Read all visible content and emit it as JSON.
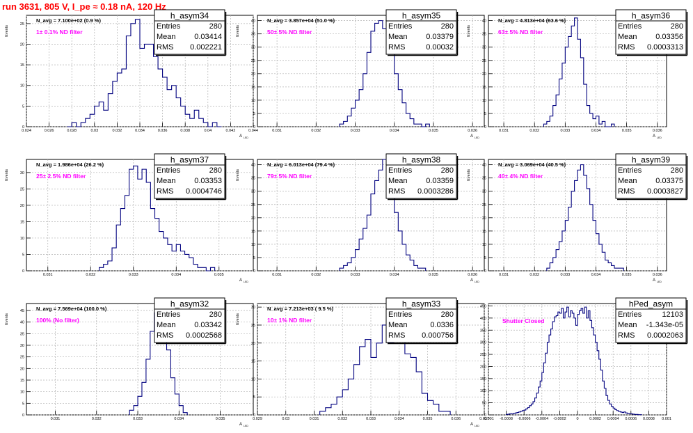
{
  "run_title": "run 3631,   805 V, I_pe ≈ 0.18 nA, 120 Hz",
  "colors": {
    "histogram_line": "#00007f",
    "filter_label": "#ff00ff",
    "run_title": "#ff0000",
    "frame": "#000000",
    "grid": "#b0b0b0"
  },
  "chart_data": [
    {
      "type": "histogram",
      "name": "h_asym34",
      "navg": "N_avg = 7.100e+02 (0.9 %)",
      "filter": "1± 0.1% ND filter",
      "stats": [
        [
          "Entries",
          "280"
        ],
        [
          "Mean",
          "0.03414"
        ],
        [
          "RMS",
          "0.002221"
        ]
      ],
      "ylabel": "Events",
      "xlabel": "A",
      "xlim": [
        0.024,
        0.044
      ],
      "ylim": [
        0,
        27
      ],
      "xticks": [
        "0.024",
        "0.026",
        "0.028",
        "0.03",
        "0.032",
        "0.034",
        "0.036",
        "0.038",
        "0.04",
        "0.042",
        "0.044"
      ],
      "yticks": [
        "0",
        "5",
        "10",
        "15",
        "20",
        "25"
      ],
      "bin_width": 0.0004,
      "x": [
        0.0276,
        0.028,
        0.0284,
        0.0288,
        0.0292,
        0.0296,
        0.03,
        0.0304,
        0.0308,
        0.0312,
        0.0316,
        0.032,
        0.0324,
        0.0328,
        0.0332,
        0.0336,
        0.034,
        0.0344,
        0.0348,
        0.0352,
        0.0356,
        0.036,
        0.0364,
        0.0368,
        0.0372,
        0.0376,
        0.038,
        0.0384,
        0.0388,
        0.0392,
        0.0396,
        0.04,
        0.0404,
        0.0408
      ],
      "values": [
        0,
        1,
        0,
        1,
        2,
        3,
        5,
        6,
        4,
        8,
        11,
        13,
        14,
        22,
        25,
        26,
        19,
        20,
        20,
        17,
        14,
        12,
        9,
        10,
        7,
        5,
        3,
        2,
        4,
        2,
        1,
        0,
        1,
        0
      ]
    },
    {
      "type": "histogram",
      "name": "h_asym35",
      "navg": "N_avg = 3.857e+04 (51.0 %)",
      "filter": "50± 5% ND filter",
      "stats": [
        [
          "Entries",
          "280"
        ],
        [
          "Mean",
          "0.03379"
        ],
        [
          "RMS",
          "0.00032"
        ]
      ],
      "ylabel": "Events",
      "xlabel": "A",
      "xlim": [
        0.0305,
        0.0363
      ],
      "ylim": [
        0,
        42
      ],
      "xticks": [
        "0.031",
        "0.032",
        "0.033",
        "0.034",
        "0.035",
        "0.036"
      ],
      "xticks_at": [
        0.031,
        0.032,
        0.033,
        0.034,
        0.035,
        0.036
      ],
      "yticks": [
        "0",
        "5",
        "10",
        "15",
        "20",
        "25",
        "30",
        "35",
        "40"
      ],
      "bin_width": 0.0001,
      "x": [
        0.0326,
        0.0327,
        0.0328,
        0.0329,
        0.033,
        0.0331,
        0.0332,
        0.0333,
        0.0334,
        0.0335,
        0.0336,
        0.0337,
        0.0338,
        0.0339,
        0.034,
        0.0341,
        0.0342,
        0.0343,
        0.0344,
        0.0345,
        0.0346,
        0.0347,
        0.0348
      ],
      "values": [
        1,
        2,
        4,
        7,
        10,
        14,
        20,
        28,
        36,
        39,
        40,
        37,
        33,
        28,
        20,
        14,
        9,
        5,
        3,
        1,
        1,
        0,
        1
      ]
    },
    {
      "type": "histogram",
      "name": "h_asym36",
      "navg": "N_avg = 4.813e+04 (63.6 %)",
      "filter": "63± 5% ND filter",
      "stats": [
        [
          "Entries",
          "280"
        ],
        [
          "Mean",
          "0.03356"
        ],
        [
          "RMS",
          "0.0003313"
        ]
      ],
      "ylabel": "Events",
      "xlabel": "A",
      "xlim": [
        0.0305,
        0.0363
      ],
      "ylim": [
        0,
        42
      ],
      "xticks": [
        "0.031",
        "0.032",
        "0.033",
        "0.034",
        "0.035",
        "0.036"
      ],
      "xticks_at": [
        0.031,
        0.032,
        0.033,
        0.034,
        0.035,
        0.036
      ],
      "yticks": [
        "0",
        "5",
        "10",
        "15",
        "20",
        "25",
        "30",
        "35",
        "40"
      ],
      "bin_width": 0.0001,
      "x": [
        0.0323,
        0.0324,
        0.0325,
        0.0326,
        0.0327,
        0.0328,
        0.0329,
        0.033,
        0.0331,
        0.0332,
        0.0333,
        0.0334,
        0.0335,
        0.0336,
        0.0337,
        0.0338,
        0.0339,
        0.034,
        0.0341,
        0.0342,
        0.0343,
        0.0344,
        0.0345
      ],
      "values": [
        1,
        2,
        4,
        8,
        12,
        18,
        24,
        30,
        34,
        38,
        41,
        33,
        26,
        16,
        8,
        5,
        3,
        4,
        1,
        2,
        0,
        0,
        1
      ]
    },
    {
      "type": "histogram",
      "name": "h_asym37",
      "navg": "N_avg = 1.986e+04 (26.2 %)",
      "filter": "25± 2.5% ND filter",
      "stats": [
        [
          "Entries",
          "280"
        ],
        [
          "Mean",
          "0.03353"
        ],
        [
          "RMS",
          "0.0004746"
        ]
      ],
      "ylabel": "Events",
      "xlabel": "A",
      "xlim": [
        0.0305,
        0.0358
      ],
      "ylim": [
        0,
        34
      ],
      "xticks": [
        "0.031",
        "0.032",
        "0.033",
        "0.034",
        "0.035"
      ],
      "xticks_at": [
        0.031,
        0.032,
        0.033,
        0.034,
        0.035
      ],
      "yticks": [
        "0",
        "5",
        "10",
        "15",
        "20",
        "25",
        "30"
      ],
      "bin_width": 0.0001,
      "x": [
        0.0322,
        0.0323,
        0.0324,
        0.0325,
        0.0326,
        0.0327,
        0.0328,
        0.0329,
        0.033,
        0.0331,
        0.0332,
        0.0333,
        0.0334,
        0.0335,
        0.0336,
        0.0337,
        0.0338,
        0.0339,
        0.034,
        0.0341,
        0.0342,
        0.0343,
        0.0344,
        0.0345,
        0.0346,
        0.0347,
        0.0348
      ],
      "values": [
        1,
        2,
        3,
        7,
        14,
        19,
        23,
        31,
        32,
        28,
        31,
        27,
        19,
        16,
        12,
        10,
        8,
        6,
        8,
        6,
        5,
        4,
        2,
        1,
        1,
        0,
        1
      ]
    },
    {
      "type": "histogram",
      "name": "h_asym38",
      "navg": "N_avg = 6.013e+04 (79.4 %)",
      "filter": "79± 5% ND filter",
      "stats": [
        [
          "Entries",
          "280"
        ],
        [
          "Mean",
          "0.03359"
        ],
        [
          "RMS",
          "0.0003286"
        ]
      ],
      "ylabel": "Events",
      "xlabel": "A",
      "xlim": [
        0.0305,
        0.0363
      ],
      "ylim": [
        0,
        42
      ],
      "xticks": [
        "0.031",
        "0.032",
        "0.033",
        "0.034",
        "0.035",
        "0.036"
      ],
      "xticks_at": [
        0.031,
        0.032,
        0.033,
        0.034,
        0.035,
        0.036
      ],
      "yticks": [
        "0",
        "5",
        "10",
        "15",
        "20",
        "25",
        "30",
        "35",
        "40"
      ],
      "bin_width": 0.0001,
      "x": [
        0.0326,
        0.0327,
        0.0328,
        0.0329,
        0.033,
        0.0331,
        0.0332,
        0.0333,
        0.0334,
        0.0335,
        0.0336,
        0.0337,
        0.0338,
        0.0339,
        0.034,
        0.0341,
        0.0342,
        0.0343,
        0.0344,
        0.0345,
        0.0346,
        0.0347
      ],
      "values": [
        1,
        2,
        3,
        5,
        8,
        12,
        16,
        21,
        29,
        34,
        38,
        42,
        35,
        30,
        22,
        15,
        10,
        6,
        4,
        2,
        1,
        1
      ]
    },
    {
      "type": "histogram",
      "name": "h_asym39",
      "navg": "N_avg = 3.069e+04 (40.5 %)",
      "filter": "40± 4% ND filter",
      "stats": [
        [
          "Entries",
          "280"
        ],
        [
          "Mean",
          "0.03375"
        ],
        [
          "RMS",
          "0.0003827"
        ]
      ],
      "ylabel": "Events",
      "xlabel": "A",
      "xlim": [
        0.0305,
        0.0363
      ],
      "ylim": [
        0,
        42
      ],
      "xticks": [
        "0.031",
        "0.032",
        "0.033",
        "0.034",
        "0.035",
        "0.036"
      ],
      "xticks_at": [
        0.031,
        0.032,
        0.033,
        0.034,
        0.035,
        0.036
      ],
      "yticks": [
        "0",
        "5",
        "10",
        "15",
        "20",
        "25",
        "30",
        "35",
        "40"
      ],
      "bin_width": 0.0001,
      "x": [
        0.0324,
        0.0325,
        0.0326,
        0.0327,
        0.0328,
        0.0329,
        0.033,
        0.0331,
        0.0332,
        0.0333,
        0.0334,
        0.0335,
        0.0336,
        0.0337,
        0.0338,
        0.0339,
        0.034,
        0.0341,
        0.0342,
        0.0343,
        0.0344,
        0.0345,
        0.0346,
        0.0347,
        0.0348
      ],
      "values": [
        1,
        3,
        5,
        8,
        11,
        15,
        19,
        24,
        30,
        34,
        38,
        40,
        36,
        31,
        25,
        19,
        14,
        10,
        7,
        4,
        3,
        2,
        1,
        1,
        1
      ]
    },
    {
      "type": "histogram",
      "name": "h_asym32",
      "navg": "N_avg = 7.569e+04 (100.0 %)",
      "filter": "100% (No filter)",
      "stats": [
        [
          "Entries",
          "280"
        ],
        [
          "Mean",
          "0.03342"
        ],
        [
          "RMS",
          "0.0002568"
        ]
      ],
      "ylabel": "Events",
      "xlabel": "A",
      "xlim": [
        0.0303,
        0.0358
      ],
      "ylim": [
        0,
        48
      ],
      "xticks": [
        "0.031",
        "0.032",
        "0.033",
        "0.034",
        "0.035"
      ],
      "xticks_at": [
        0.031,
        0.032,
        0.033,
        0.034,
        0.035
      ],
      "yticks": [
        "0",
        "5",
        "10",
        "15",
        "20",
        "25",
        "30",
        "35",
        "40",
        "45"
      ],
      "bin_width": 0.0001,
      "x": [
        0.0328,
        0.0329,
        0.033,
        0.0331,
        0.0332,
        0.0333,
        0.0334,
        0.0335,
        0.0336,
        0.0337,
        0.0338,
        0.0339,
        0.034,
        0.0341
      ],
      "values": [
        2,
        4,
        8,
        14,
        24,
        36,
        44,
        46,
        40,
        28,
        16,
        9,
        4,
        1
      ]
    },
    {
      "type": "histogram",
      "name": "h_asym33",
      "navg": "N_avg = 7.213e+03 ( 9.5 %)",
      "filter": "10± 1% ND filter",
      "stats": [
        [
          "Entries",
          "280"
        ],
        [
          "Mean",
          "0.0336"
        ],
        [
          "RMS",
          "0.000756"
        ]
      ],
      "ylabel": "Events",
      "xlabel": "A",
      "xlim": [
        0.029,
        0.037
      ],
      "ylim": [
        0,
        31
      ],
      "xticks": [
        "0.029",
        "0.03",
        "0.031",
        "0.032",
        "0.033",
        "0.034",
        "0.035",
        "0.036",
        "0.037"
      ],
      "xticks_at": [
        0.029,
        0.03,
        0.031,
        0.032,
        0.033,
        0.034,
        0.035,
        0.036,
        0.037
      ],
      "yticks": [
        "0",
        "5",
        "10",
        "15",
        "20",
        "25",
        "30"
      ],
      "bin_width": 0.0002,
      "x": [
        0.0312,
        0.0314,
        0.0316,
        0.0318,
        0.032,
        0.0322,
        0.0324,
        0.0326,
        0.0328,
        0.033,
        0.0332,
        0.0334,
        0.0336,
        0.0338,
        0.034,
        0.0342,
        0.0344,
        0.0346,
        0.0348,
        0.035,
        0.0352,
        0.0354,
        0.0356
      ],
      "values": [
        1,
        2,
        3,
        5,
        7,
        10,
        14,
        19,
        21,
        16,
        20,
        25,
        20,
        28,
        22,
        17,
        16,
        12,
        6,
        4,
        3,
        1,
        1
      ]
    },
    {
      "type": "histogram",
      "name": "hPed_asym",
      "navg": "",
      "filter": "Shutter Closed",
      "stats": [
        [
          "Entries",
          "12103"
        ],
        [
          "Mean",
          "-1.343e-05"
        ],
        [
          "RMS",
          "0.0002063"
        ]
      ],
      "ylabel": "",
      "xlabel": "",
      "xlim": [
        -0.001,
        0.001
      ],
      "ylim": [
        0,
        460
      ],
      "xticks": [
        "-0.001",
        "-0.0008",
        "-0.0006",
        "-0.0004",
        "-0.0002",
        "0",
        "0.0002",
        "0.0004",
        "0.0006",
        "0.0008",
        "0.001"
      ],
      "yticks": [
        "0",
        "50",
        "100",
        "150",
        "200",
        "250",
        "300",
        "350",
        "400",
        "450"
      ],
      "bin_width": 2e-05,
      "x": [
        -0.0008,
        -0.00078,
        -0.00076,
        -0.00074,
        -0.00072,
        -0.0007,
        -0.00068,
        -0.00066,
        -0.00064,
        -0.00062,
        -0.0006,
        -0.00058,
        -0.00056,
        -0.00054,
        -0.00052,
        -0.0005,
        -0.00048,
        -0.00046,
        -0.00044,
        -0.00042,
        -0.0004,
        -0.00038,
        -0.00036,
        -0.00034,
        -0.00032,
        -0.0003,
        -0.00028,
        -0.00026,
        -0.00024,
        -0.00022,
        -0.0002,
        -0.00018,
        -0.00016,
        -0.00014,
        -0.00012,
        -0.0001,
        -8e-05,
        -6e-05,
        -4e-05,
        -2e-05,
        0.0,
        2e-05,
        4e-05,
        6e-05,
        8e-05,
        0.0001,
        0.00012,
        0.00014,
        0.00016,
        0.00018,
        0.0002,
        0.00022,
        0.00024,
        0.00026,
        0.00028,
        0.0003,
        0.00032,
        0.00034,
        0.00036,
        0.00038,
        0.0004,
        0.00042,
        0.00044,
        0.00046,
        0.00048,
        0.0005,
        0.00052,
        0.00054,
        0.00056,
        0.00058,
        0.0006,
        0.00062,
        0.00064,
        0.00066,
        0.00068,
        0.0007
      ],
      "values": [
        2,
        3,
        5,
        4,
        6,
        8,
        10,
        12,
        15,
        18,
        20,
        25,
        30,
        38,
        45,
        55,
        70,
        90,
        115,
        140,
        175,
        215,
        255,
        300,
        330,
        355,
        385,
        405,
        410,
        425,
        420,
        440,
        400,
        425,
        445,
        405,
        430,
        420,
        400,
        370,
        415,
        430,
        440,
        420,
        445,
        400,
        430,
        390,
        360,
        330,
        300,
        265,
        230,
        185,
        140,
        110,
        80,
        60,
        45,
        35,
        28,
        22,
        18,
        14,
        12,
        10,
        12,
        8,
        6,
        5,
        4,
        3,
        2,
        2,
        1,
        1
      ]
    }
  ]
}
